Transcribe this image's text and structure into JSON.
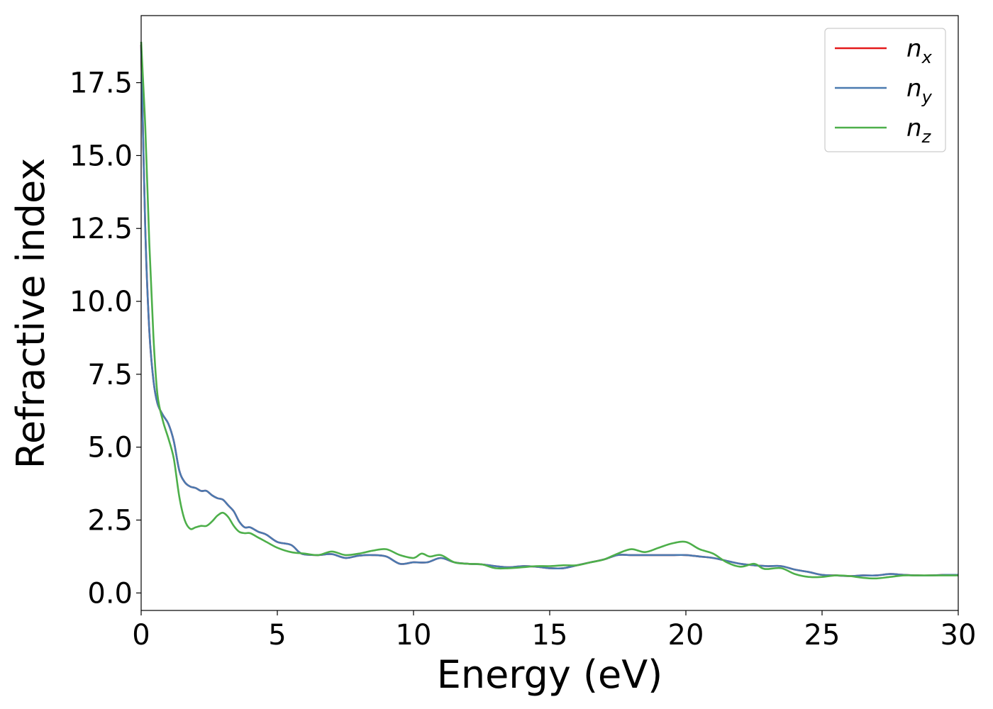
{
  "chart_data": {
    "type": "line",
    "xlabel": "Energy (eV)",
    "ylabel": "Refractive index",
    "xlim": [
      0,
      30
    ],
    "ylim": [
      -0.6,
      19.8
    ],
    "xticks": [
      "0",
      "5",
      "10",
      "15",
      "20",
      "25",
      "30"
    ],
    "yticks": [
      "0.0",
      "2.5",
      "5.0",
      "7.5",
      "10.0",
      "12.5",
      "15.0",
      "17.5"
    ],
    "grid": false,
    "legend_position": "top-right",
    "series": [
      {
        "name": "n_x",
        "label_base": "n",
        "label_sub": "x",
        "color": "#e41a1c",
        "x": [
          0,
          0.15,
          0.3,
          0.45,
          0.6,
          0.8,
          1.0,
          1.2,
          1.4,
          1.6,
          1.8,
          2.0,
          2.2,
          2.4,
          2.6,
          2.8,
          3.0,
          3.2,
          3.4,
          3.6,
          3.8,
          4.0,
          4.3,
          4.6,
          5.0,
          5.5,
          5.8,
          6.0,
          6.5,
          7.0,
          7.5,
          8.0,
          8.5,
          9.0,
          9.5,
          10.0,
          10.5,
          11.0,
          11.5,
          12.0,
          12.5,
          13.0,
          13.5,
          14.0,
          14.5,
          15.0,
          15.5,
          16.0,
          16.5,
          17.0,
          17.5,
          18.0,
          18.5,
          19.0,
          19.5,
          20.0,
          20.5,
          21.0,
          21.5,
          22.0,
          22.5,
          23.0,
          23.5,
          24.0,
          24.5,
          25.0,
          25.5,
          26.0,
          26.5,
          27.0,
          27.5,
          28.0,
          28.5,
          29.0,
          29.5,
          30.0
        ],
        "y": [
          18.8,
          12.5,
          9.0,
          7.3,
          6.5,
          6.1,
          5.8,
          5.2,
          4.2,
          3.8,
          3.65,
          3.6,
          3.5,
          3.5,
          3.35,
          3.25,
          3.2,
          3.0,
          2.8,
          2.45,
          2.25,
          2.25,
          2.1,
          2.0,
          1.75,
          1.65,
          1.4,
          1.32,
          1.3,
          1.33,
          1.2,
          1.28,
          1.3,
          1.25,
          1.0,
          1.05,
          1.05,
          1.2,
          1.05,
          1.0,
          0.98,
          0.92,
          0.88,
          0.92,
          0.9,
          0.85,
          0.85,
          0.95,
          1.05,
          1.15,
          1.3,
          1.3,
          1.3,
          1.3,
          1.3,
          1.3,
          1.25,
          1.2,
          1.1,
          1.0,
          0.95,
          0.92,
          0.92,
          0.8,
          0.72,
          0.62,
          0.6,
          0.58,
          0.6,
          0.6,
          0.65,
          0.62,
          0.6,
          0.6,
          0.62,
          0.62
        ]
      },
      {
        "name": "n_y",
        "label_base": "n",
        "label_sub": "y",
        "color": "#4a7ab0",
        "x": [
          0,
          0.15,
          0.3,
          0.45,
          0.6,
          0.8,
          1.0,
          1.2,
          1.4,
          1.6,
          1.8,
          2.0,
          2.2,
          2.4,
          2.6,
          2.8,
          3.0,
          3.2,
          3.4,
          3.6,
          3.8,
          4.0,
          4.3,
          4.6,
          5.0,
          5.5,
          5.8,
          6.0,
          6.5,
          7.0,
          7.5,
          8.0,
          8.5,
          9.0,
          9.5,
          10.0,
          10.5,
          11.0,
          11.5,
          12.0,
          12.5,
          13.0,
          13.5,
          14.0,
          14.5,
          15.0,
          15.5,
          16.0,
          16.5,
          17.0,
          17.5,
          18.0,
          18.5,
          19.0,
          19.5,
          20.0,
          20.5,
          21.0,
          21.5,
          22.0,
          22.5,
          23.0,
          23.5,
          24.0,
          24.5,
          25.0,
          25.5,
          26.0,
          26.5,
          27.0,
          27.5,
          28.0,
          28.5,
          29.0,
          29.5,
          30.0
        ],
        "y": [
          18.8,
          12.5,
          9.0,
          7.3,
          6.5,
          6.1,
          5.8,
          5.2,
          4.2,
          3.8,
          3.65,
          3.6,
          3.5,
          3.5,
          3.35,
          3.25,
          3.2,
          3.0,
          2.8,
          2.45,
          2.25,
          2.25,
          2.1,
          2.0,
          1.75,
          1.65,
          1.4,
          1.32,
          1.3,
          1.33,
          1.2,
          1.28,
          1.3,
          1.25,
          1.0,
          1.05,
          1.05,
          1.2,
          1.05,
          1.0,
          0.98,
          0.92,
          0.88,
          0.92,
          0.9,
          0.85,
          0.85,
          0.95,
          1.05,
          1.15,
          1.3,
          1.3,
          1.3,
          1.3,
          1.3,
          1.3,
          1.25,
          1.2,
          1.1,
          1.0,
          0.95,
          0.92,
          0.92,
          0.8,
          0.72,
          0.62,
          0.6,
          0.58,
          0.6,
          0.6,
          0.65,
          0.62,
          0.6,
          0.6,
          0.62,
          0.62
        ]
      },
      {
        "name": "n_z",
        "label_base": "n",
        "label_sub": "z",
        "color": "#4daf4a",
        "x": [
          0,
          0.15,
          0.3,
          0.45,
          0.6,
          0.8,
          1.0,
          1.2,
          1.4,
          1.6,
          1.8,
          2.0,
          2.2,
          2.4,
          2.6,
          2.8,
          3.0,
          3.2,
          3.4,
          3.6,
          3.8,
          4.0,
          4.3,
          4.6,
          5.0,
          5.5,
          6.0,
          6.5,
          7.0,
          7.5,
          8.0,
          8.5,
          9.0,
          9.5,
          10.0,
          10.3,
          10.6,
          11.0,
          11.5,
          12.0,
          12.5,
          13.0,
          13.5,
          14.0,
          14.5,
          15.0,
          15.5,
          16.0,
          16.5,
          17.0,
          17.5,
          18.0,
          18.5,
          19.0,
          19.5,
          20.0,
          20.5,
          21.0,
          21.5,
          22.0,
          22.5,
          22.8,
          23.0,
          23.5,
          24.0,
          24.5,
          25.0,
          25.5,
          26.0,
          26.5,
          27.0,
          27.5,
          28.0,
          28.5,
          29.0,
          29.5,
          30.0
        ],
        "y": [
          18.9,
          16.0,
          12.0,
          8.8,
          6.8,
          5.9,
          5.3,
          4.6,
          3.3,
          2.5,
          2.2,
          2.25,
          2.3,
          2.3,
          2.45,
          2.65,
          2.75,
          2.6,
          2.3,
          2.1,
          2.05,
          2.05,
          1.9,
          1.75,
          1.55,
          1.4,
          1.35,
          1.3,
          1.42,
          1.3,
          1.35,
          1.45,
          1.5,
          1.3,
          1.2,
          1.35,
          1.25,
          1.3,
          1.05,
          1.0,
          0.98,
          0.85,
          0.85,
          0.88,
          0.92,
          0.92,
          0.95,
          0.95,
          1.05,
          1.15,
          1.35,
          1.5,
          1.4,
          1.55,
          1.7,
          1.75,
          1.5,
          1.35,
          1.05,
          0.9,
          1.0,
          0.85,
          0.82,
          0.85,
          0.65,
          0.55,
          0.55,
          0.6,
          0.58,
          0.52,
          0.5,
          0.55,
          0.6,
          0.6,
          0.6,
          0.6,
          0.6
        ]
      }
    ]
  }
}
